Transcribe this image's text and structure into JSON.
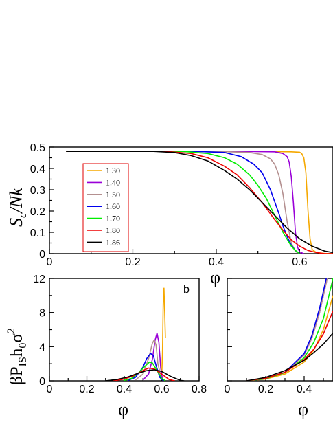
{
  "chart_data": [
    {
      "type": "line",
      "panel": "top",
      "ylabel_main": "S",
      "ylabel_sub": "c",
      "ylabel_tail": "/Nk",
      "xlabel": "φ",
      "xlim": [
        0,
        0.68
      ],
      "ylim": [
        0,
        0.5
      ],
      "xticks": [
        "0",
        "0.2",
        "0.4",
        "0.6"
      ],
      "xtick_values": [
        0,
        0.2,
        0.4,
        0.6
      ],
      "yticks": [
        "0",
        "0.1",
        "0.2",
        "0.3",
        "0.4",
        "0.5"
      ],
      "ytick_values": [
        0,
        0.1,
        0.2,
        0.3,
        0.4,
        0.5
      ],
      "legend": [
        "1.30",
        "1.40",
        "1.50",
        "1.60",
        "1.70",
        "1.80",
        "1.86"
      ],
      "legend_placement": "upper-left",
      "series": [
        {
          "name": "1.30",
          "color": "#f5a800",
          "x": [
            0.04,
            0.5,
            0.58,
            0.6,
            0.605,
            0.61,
            0.615,
            0.62,
            0.625,
            0.63,
            0.64,
            0.66,
            0.68
          ],
          "y": [
            0.48,
            0.48,
            0.478,
            0.476,
            0.47,
            0.45,
            0.38,
            0.2,
            0.07,
            0.02,
            0.005,
            0.001,
            0.0
          ]
        },
        {
          "name": "1.40",
          "color": "#9a00d8",
          "x": [
            0.04,
            0.45,
            0.54,
            0.56,
            0.57,
            0.575,
            0.58,
            0.585,
            0.59,
            0.595,
            0.6,
            0.61
          ],
          "y": [
            0.48,
            0.48,
            0.478,
            0.47,
            0.455,
            0.43,
            0.36,
            0.24,
            0.1,
            0.03,
            0.008,
            0.0
          ]
        },
        {
          "name": "1.50",
          "color": "#b49090",
          "x": [
            0.04,
            0.4,
            0.48,
            0.51,
            0.53,
            0.54,
            0.55,
            0.56,
            0.57,
            0.58,
            0.59,
            0.6
          ],
          "y": [
            0.48,
            0.48,
            0.475,
            0.465,
            0.445,
            0.42,
            0.37,
            0.28,
            0.15,
            0.05,
            0.01,
            0.0
          ]
        },
        {
          "name": "1.60",
          "color": "#0000ee",
          "x": [
            0.04,
            0.35,
            0.42,
            0.46,
            0.49,
            0.51,
            0.53,
            0.55,
            0.56,
            0.57,
            0.58,
            0.59,
            0.6
          ],
          "y": [
            0.48,
            0.48,
            0.475,
            0.455,
            0.42,
            0.38,
            0.3,
            0.19,
            0.13,
            0.08,
            0.04,
            0.015,
            0.0
          ]
        },
        {
          "name": "1.70",
          "color": "#00ee00",
          "x": [
            0.04,
            0.32,
            0.38,
            0.42,
            0.45,
            0.48,
            0.5,
            0.52,
            0.54,
            0.56,
            0.58,
            0.59,
            0.6
          ],
          "y": [
            0.48,
            0.48,
            0.47,
            0.45,
            0.42,
            0.37,
            0.32,
            0.26,
            0.18,
            0.1,
            0.035,
            0.015,
            0.0
          ]
        },
        {
          "name": "1.80",
          "color": "#ee0000",
          "x": [
            0.04,
            0.28,
            0.34,
            0.38,
            0.42,
            0.45,
            0.48,
            0.51,
            0.54,
            0.56,
            0.58,
            0.6,
            0.62,
            0.64,
            0.66,
            0.68
          ],
          "y": [
            0.48,
            0.48,
            0.47,
            0.45,
            0.41,
            0.37,
            0.31,
            0.24,
            0.16,
            0.11,
            0.065,
            0.035,
            0.015,
            0.005,
            0.0,
            0.0
          ]
        },
        {
          "name": "1.86",
          "color": "#000000",
          "x": [
            0.04,
            0.25,
            0.3,
            0.34,
            0.38,
            0.42,
            0.45,
            0.48,
            0.51,
            0.54,
            0.57,
            0.6,
            0.63,
            0.66,
            0.68
          ],
          "y": [
            0.48,
            0.48,
            0.475,
            0.46,
            0.435,
            0.39,
            0.35,
            0.3,
            0.24,
            0.18,
            0.12,
            0.07,
            0.035,
            0.012,
            0.005
          ]
        }
      ]
    },
    {
      "type": "line",
      "panel": "bottom-left",
      "label": "b",
      "ylabel_main": "βP",
      "ylabel_sub1": "IS",
      "ylabel_mid": "h",
      "ylabel_sub2": "0",
      "ylabel_tail": "σ",
      "ylabel_sup": "2",
      "xlabel": "φ",
      "xlim": [
        0,
        0.8
      ],
      "ylim": [
        0,
        12
      ],
      "xticks": [
        "0",
        "0.2",
        "0.4",
        "0.6",
        "0.8"
      ],
      "xtick_values": [
        0,
        0.2,
        0.4,
        0.6,
        0.8
      ],
      "yticks": [
        "0",
        "4",
        "8",
        "12"
      ],
      "ytick_values": [
        0,
        4,
        8,
        12
      ],
      "series": [
        {
          "name": "1.30",
          "color": "#f5a800",
          "x": [
            0.6,
            0.604,
            0.608,
            0.612,
            0.616,
            0.62
          ],
          "y": [
            0.5,
            3,
            9,
            10.9,
            8,
            5
          ]
        },
        {
          "name": "1.40",
          "color": "#9a00d8",
          "x": [
            0.5,
            0.53,
            0.55,
            0.565,
            0.575,
            0.585,
            0.595,
            0.605
          ],
          "y": [
            0.1,
            0.8,
            2.5,
            4.8,
            5.6,
            4.5,
            1.5,
            0.1
          ]
        },
        {
          "name": "1.50",
          "color": "#b49090",
          "x": [
            0.46,
            0.5,
            0.53,
            0.55,
            0.56,
            0.57,
            0.58,
            0.6
          ],
          "y": [
            0.1,
            0.8,
            2.6,
            4.4,
            4.8,
            4.2,
            2.0,
            0.1
          ]
        },
        {
          "name": "1.60",
          "color": "#0000ee",
          "x": [
            0.42,
            0.46,
            0.5,
            0.52,
            0.54,
            0.555,
            0.57,
            0.59,
            0.61
          ],
          "y": [
            0.05,
            0.4,
            1.6,
            2.6,
            3.2,
            3.0,
            1.8,
            0.4,
            0.0
          ]
        },
        {
          "name": "1.70",
          "color": "#00ee00",
          "x": [
            0.4,
            0.44,
            0.48,
            0.51,
            0.535,
            0.55,
            0.57,
            0.6,
            0.62
          ],
          "y": [
            0.05,
            0.3,
            1.0,
            1.7,
            2.2,
            2.1,
            1.4,
            0.3,
            0.0
          ]
        },
        {
          "name": "1.80",
          "color": "#ee0000",
          "x": [
            0.34,
            0.4,
            0.45,
            0.5,
            0.53,
            0.56,
            0.6,
            0.64,
            0.67
          ],
          "y": [
            0.0,
            0.2,
            0.6,
            1.2,
            1.5,
            1.4,
            0.8,
            0.15,
            0.0
          ]
        },
        {
          "name": "1.86",
          "color": "#000000",
          "x": [
            0.3,
            0.36,
            0.42,
            0.47,
            0.52,
            0.56,
            0.6,
            0.65,
            0.7,
            0.72
          ],
          "y": [
            0.0,
            0.15,
            0.45,
            0.85,
            1.2,
            1.3,
            1.1,
            0.5,
            0.05,
            0.0
          ]
        }
      ]
    },
    {
      "type": "line",
      "panel": "bottom-right",
      "xlabel": "φ",
      "xlim": [
        0,
        0.55
      ],
      "ylim": [
        0,
        12
      ],
      "xticks": [
        "0",
        "0.2",
        "0.4"
      ],
      "xtick_values": [
        0,
        0.2,
        0.4
      ],
      "series": [
        {
          "name": "1.30",
          "color": "#f5a800",
          "x": [
            0.1,
            0.2,
            0.3,
            0.4,
            0.45,
            0.5,
            0.55
          ],
          "y": [
            0.0,
            0.2,
            0.8,
            2.2,
            3.6,
            6.0,
            10.0
          ]
        },
        {
          "name": "1.40",
          "color": "#9a00d8",
          "x": [
            0.1,
            0.2,
            0.3,
            0.4,
            0.44,
            0.48,
            0.52
          ],
          "y": [
            0.0,
            0.25,
            1.0,
            3.0,
            5.0,
            8.0,
            12.0
          ]
        },
        {
          "name": "1.50",
          "color": "#b49090",
          "x": [
            0.1,
            0.2,
            0.3,
            0.4,
            0.44,
            0.48,
            0.52
          ],
          "y": [
            0.0,
            0.25,
            1.0,
            3.0,
            5.0,
            8.0,
            12.0
          ]
        },
        {
          "name": "1.60",
          "color": "#0000ee",
          "x": [
            0.1,
            0.2,
            0.3,
            0.4,
            0.44,
            0.48,
            0.515
          ],
          "y": [
            0.0,
            0.25,
            1.0,
            3.2,
            5.3,
            8.5,
            12.0
          ]
        },
        {
          "name": "1.70",
          "color": "#00ee00",
          "x": [
            0.1,
            0.2,
            0.3,
            0.4,
            0.45,
            0.5,
            0.55
          ],
          "y": [
            0.0,
            0.25,
            0.95,
            2.7,
            4.5,
            7.3,
            12.0
          ]
        },
        {
          "name": "1.80",
          "color": "#ee0000",
          "x": [
            0.1,
            0.2,
            0.3,
            0.4,
            0.45,
            0.5,
            0.55
          ],
          "y": [
            0.0,
            0.3,
            1.0,
            2.5,
            3.7,
            5.5,
            8.2
          ]
        },
        {
          "name": "1.86",
          "color": "#000000",
          "x": [
            0.1,
            0.2,
            0.3,
            0.4,
            0.45,
            0.5,
            0.55
          ],
          "y": [
            0.0,
            0.4,
            1.2,
            2.4,
            3.3,
            4.3,
            5.6
          ]
        }
      ]
    }
  ]
}
